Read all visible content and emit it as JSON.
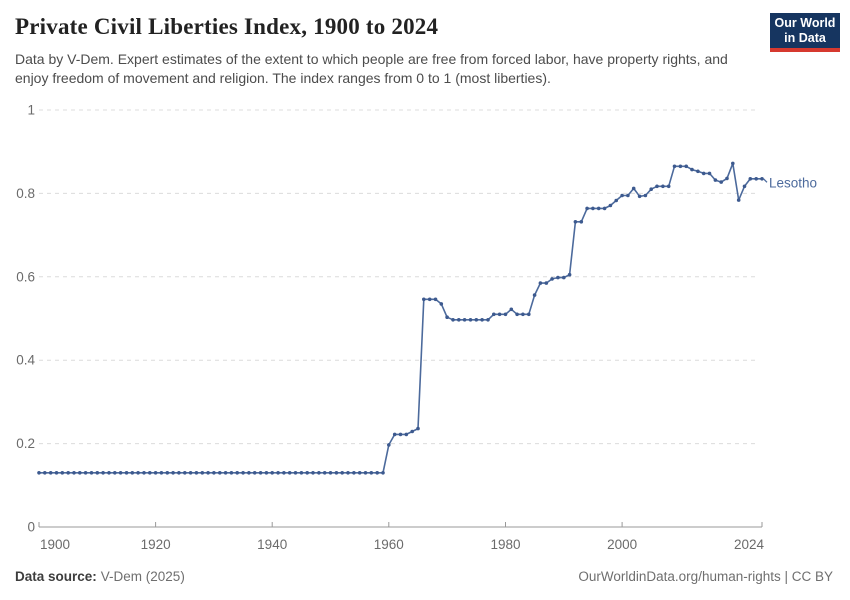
{
  "header": {
    "title": "Private Civil Liberties Index, 1900 to 2024",
    "subtitle": "Data by V-Dem. Expert estimates of the extent to which people are free from forced labor, have property rights, and enjoy freedom of movement and religion. The index ranges from 0 to 1 (most liberties).",
    "logo": {
      "line1": "Our World",
      "line2": "in Data",
      "bg_color": "#163560",
      "stripe_color": "#d6392f"
    }
  },
  "chart_data": {
    "type": "line",
    "title": "Private Civil Liberties Index, 1900 to 2024",
    "xlabel": "",
    "ylabel": "",
    "xlim": [
      1900,
      2024
    ],
    "ylim": [
      0,
      1
    ],
    "x_ticks": [
      1900,
      1920,
      1940,
      1960,
      1980,
      2000,
      2024
    ],
    "y_ticks": [
      0,
      0.2,
      0.4,
      0.6,
      0.8,
      1
    ],
    "y_tick_labels": [
      "0",
      "0.2",
      "0.4",
      "0.6",
      "0.8",
      "1"
    ],
    "grid": "horizontal-dashed",
    "legend_position": "end-of-line-label",
    "colors": {
      "line": "#4c6a9c",
      "marker": "#3d5a8f",
      "grid": "#dcdcdc",
      "axis": "#999999",
      "tick_text": "#6b6b6b"
    },
    "series": [
      {
        "name": "Lesotho",
        "start_year": 1900,
        "end_year": 2024,
        "values": [
          0.13,
          0.13,
          0.13,
          0.13,
          0.13,
          0.13,
          0.13,
          0.13,
          0.13,
          0.13,
          0.13,
          0.13,
          0.13,
          0.13,
          0.13,
          0.13,
          0.13,
          0.13,
          0.13,
          0.13,
          0.13,
          0.13,
          0.13,
          0.13,
          0.13,
          0.13,
          0.13,
          0.13,
          0.13,
          0.13,
          0.13,
          0.13,
          0.13,
          0.13,
          0.13,
          0.13,
          0.13,
          0.13,
          0.13,
          0.13,
          0.13,
          0.13,
          0.13,
          0.13,
          0.13,
          0.13,
          0.13,
          0.13,
          0.13,
          0.13,
          0.13,
          0.13,
          0.13,
          0.13,
          0.13,
          0.13,
          0.13,
          0.13,
          0.13,
          0.13,
          0.197,
          0.222,
          0.222,
          0.222,
          0.229,
          0.236,
          0.546,
          0.546,
          0.546,
          0.535,
          0.503,
          0.497,
          0.497,
          0.497,
          0.497,
          0.497,
          0.497,
          0.497,
          0.51,
          0.51,
          0.51,
          0.522,
          0.51,
          0.51,
          0.51,
          0.556,
          0.585,
          0.585,
          0.595,
          0.598,
          0.598,
          0.605,
          0.732,
          0.732,
          0.764,
          0.764,
          0.764,
          0.764,
          0.771,
          0.783,
          0.795,
          0.795,
          0.812,
          0.793,
          0.795,
          0.81,
          0.817,
          0.817,
          0.817,
          0.865,
          0.865,
          0.865,
          0.857,
          0.853,
          0.848,
          0.848,
          0.832,
          0.827,
          0.836,
          0.872,
          0.784,
          0.817,
          0.835,
          0.835,
          0.835
        ]
      }
    ]
  },
  "footer": {
    "source_label": "Data source:",
    "source_value": "V-Dem (2025)",
    "rights": "OurWorldinData.org/human-rights | CC BY"
  }
}
